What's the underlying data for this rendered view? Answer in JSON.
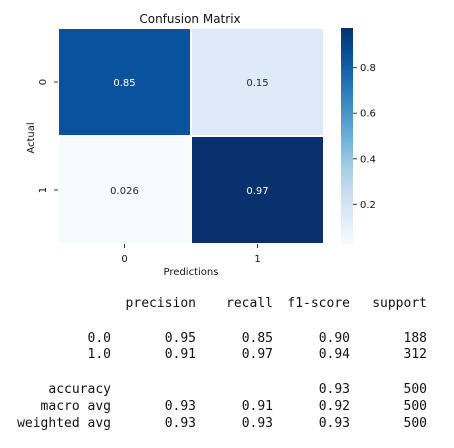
{
  "chart_data": {
    "type": "heatmap",
    "title": "Confusion Matrix",
    "xlabel": "Predictions",
    "ylabel": "Actual",
    "x_categories": [
      "0",
      "1"
    ],
    "y_categories": [
      "0",
      "1"
    ],
    "values": [
      [
        0.85,
        0.15
      ],
      [
        0.026,
        0.97
      ]
    ],
    "value_labels": [
      [
        "0.85",
        "0.15"
      ],
      [
        "0.026",
        "0.97"
      ]
    ],
    "colormap": "Blues",
    "colorbar": {
      "vmin": 0.026,
      "vmax": 0.974,
      "ticks": [
        0.2,
        0.4,
        0.6,
        0.8
      ],
      "tick_labels": [
        "0.2",
        "0.4",
        "0.6",
        "0.8"
      ]
    },
    "grid": true
  },
  "report": {
    "headers": [
      "precision",
      "recall",
      "f1-score",
      "support"
    ],
    "rows": [
      {
        "label": "0.0",
        "precision": "0.95",
        "recall": "0.85",
        "f1": "0.90",
        "support": "188"
      },
      {
        "label": "1.0",
        "precision": "0.91",
        "recall": "0.97",
        "f1": "0.94",
        "support": "312"
      },
      {
        "label": "accuracy",
        "precision": "",
        "recall": "",
        "f1": "0.93",
        "support": "500"
      },
      {
        "label": "macro avg",
        "precision": "0.93",
        "recall": "0.91",
        "f1": "0.92",
        "support": "500"
      },
      {
        "label": "weighted avg",
        "precision": "0.93",
        "recall": "0.93",
        "f1": "0.93",
        "support": "500"
      }
    ]
  }
}
